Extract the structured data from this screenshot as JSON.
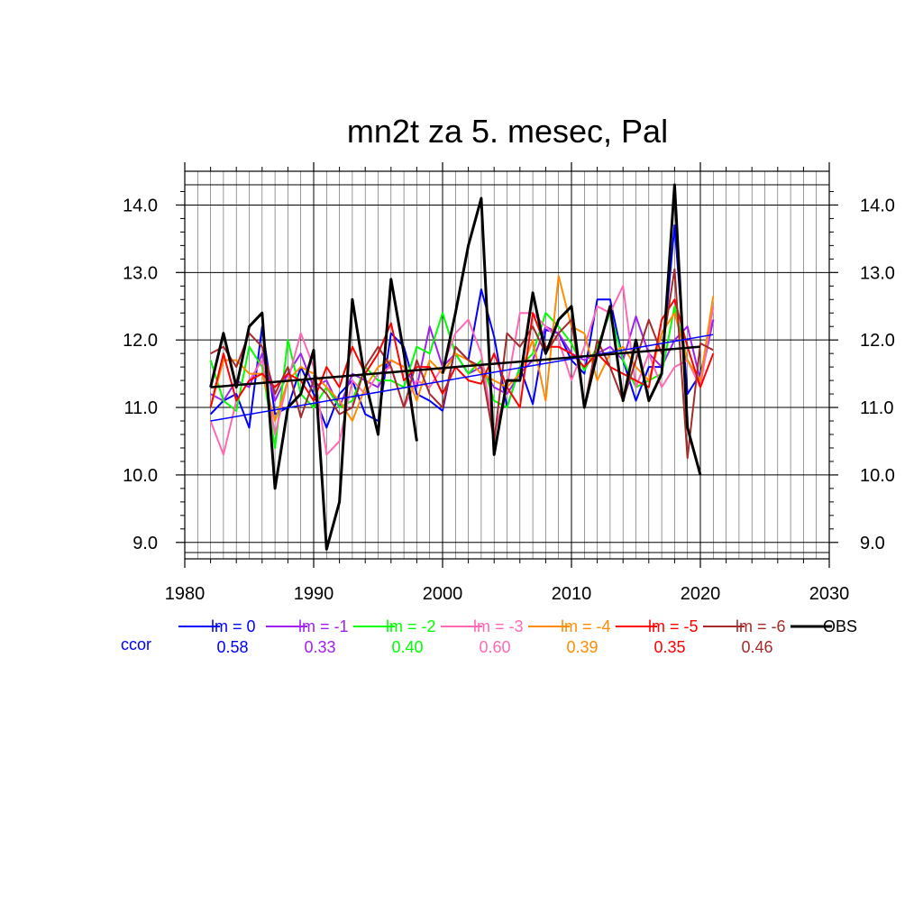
{
  "chart_data": {
    "type": "line",
    "title": "mn2t za 5. mesec, Pal",
    "xlabel": "",
    "ylabel": "",
    "xlim": [
      1980,
      2030
    ],
    "ylim": [
      8.85,
      14.3
    ],
    "x_ticks": [
      1980,
      1990,
      2000,
      2010,
      2020,
      2030
    ],
    "y_ticks": [
      9.0,
      10.0,
      11.0,
      12.0,
      13.0,
      14.0
    ],
    "y_tick_labels": [
      "9.0",
      "10.0",
      "11.0",
      "12.0",
      "13.0",
      "14.0"
    ],
    "x_tick_labels": [
      "1980",
      "1990",
      "2000",
      "2010",
      "2020",
      "2030"
    ],
    "grid": true,
    "legend_position": "bottom",
    "ccor_label": "ccor",
    "x": [
      1982,
      1983,
      1984,
      1985,
      1986,
      1987,
      1988,
      1989,
      1990,
      1991,
      1992,
      1993,
      1994,
      1995,
      1996,
      1997,
      1998,
      1999,
      2000,
      2001,
      2002,
      2003,
      2004,
      2005,
      2006,
      2007,
      2008,
      2009,
      2010,
      2011,
      2012,
      2013,
      2014,
      2015,
      2016,
      2017,
      2018,
      2019,
      2020,
      2021
    ],
    "series": [
      {
        "name": "lm = 0",
        "color": "#0000ff",
        "ccor": "0.58",
        "values": [
          10.9,
          11.1,
          11.2,
          10.7,
          12.2,
          10.9,
          11.0,
          11.6,
          11.2,
          10.7,
          11.2,
          11.4,
          10.9,
          10.8,
          12.1,
          11.9,
          11.2,
          11.1,
          10.95,
          11.9,
          11.7,
          12.75,
          12.05,
          11.0,
          11.6,
          11.05,
          12.15,
          12.1,
          11.7,
          11.5,
          12.6,
          12.6,
          11.7,
          11.1,
          11.6,
          11.6,
          13.7,
          11.2,
          11.5,
          12.3
        ],
        "trend": [
          10.8,
          12.08
        ]
      },
      {
        "name": "lm = -1",
        "color": "#a020f0",
        "ccor": "0.33",
        "values": [
          11.2,
          11.1,
          11.4,
          11.3,
          11.8,
          11.1,
          11.5,
          11.8,
          11.3,
          11.4,
          11.0,
          11.5,
          11.4,
          11.3,
          11.7,
          11.6,
          11.3,
          12.2,
          11.6,
          11.8,
          11.5,
          11.6,
          11.3,
          11.2,
          11.5,
          11.7,
          12.2,
          12.1,
          11.8,
          11.7,
          11.8,
          11.9,
          11.7,
          12.35,
          11.8,
          11.6,
          12.0,
          12.2,
          11.4,
          12.3
        ]
      },
      {
        "name": "lm = -2",
        "color": "#00ff00",
        "ccor": "0.40",
        "values": [
          11.7,
          11.1,
          10.95,
          11.9,
          11.6,
          10.4,
          12.0,
          11.2,
          11.0,
          11.3,
          11.0,
          11.1,
          11.6,
          11.4,
          11.4,
          11.3,
          11.9,
          11.8,
          12.4,
          11.8,
          11.5,
          11.7,
          11.1,
          11.0,
          11.6,
          11.8,
          12.4,
          12.2,
          11.95,
          11.55,
          11.9,
          12.4,
          11.7,
          11.3,
          11.4,
          11.5,
          12.5,
          11.7,
          11.4,
          12.5
        ]
      },
      {
        "name": "lm = -3",
        "color": "#ff69b4",
        "ccor": "0.60",
        "values": [
          10.8,
          10.3,
          11.1,
          11.4,
          11.7,
          10.6,
          11.4,
          12.1,
          11.6,
          10.3,
          10.5,
          11.4,
          11.2,
          11.5,
          11.6,
          11.0,
          11.4,
          11.3,
          11.6,
          12.1,
          12.3,
          11.8,
          10.6,
          11.3,
          12.4,
          12.4,
          12.2,
          12.0,
          11.4,
          11.9,
          12.5,
          12.4,
          12.8,
          11.3,
          11.8,
          11.3,
          11.6,
          11.7,
          11.3,
          12.5
        ]
      },
      {
        "name": "lm = -4",
        "color": "#ff8c00",
        "ccor": "0.39",
        "values": [
          11.0,
          11.7,
          11.7,
          11.5,
          11.5,
          10.8,
          11.4,
          11.6,
          11.5,
          11.3,
          11.1,
          10.8,
          11.3,
          11.6,
          11.7,
          11.6,
          11.1,
          11.7,
          11.5,
          11.8,
          11.7,
          11.5,
          11.4,
          11.3,
          11.5,
          12.0,
          11.1,
          12.95,
          12.2,
          12.1,
          11.4,
          11.8,
          11.9,
          11.6,
          11.4,
          12.1,
          12.4,
          11.7,
          11.4,
          12.65
        ]
      },
      {
        "name": "lm = -5",
        "color": "#ff0000",
        "ccor": "0.35",
        "values": [
          11.0,
          11.8,
          11.1,
          11.4,
          11.5,
          11.3,
          11.5,
          11.4,
          11.1,
          11.6,
          11.3,
          11.9,
          11.5,
          11.8,
          12.25,
          11.4,
          11.6,
          11.6,
          11.2,
          11.6,
          11.4,
          11.35,
          11.8,
          11.3,
          11.0,
          12.4,
          11.9,
          11.9,
          11.8,
          11.6,
          11.8,
          11.6,
          11.5,
          11.4,
          11.3,
          12.3,
          12.6,
          11.9,
          11.3,
          11.8
        ]
      },
      {
        "name": "lm = -6",
        "color": "#a52a2a",
        "ccor": "0.46",
        "values": [
          11.8,
          11.9,
          11.6,
          12.1,
          11.9,
          11.2,
          11.6,
          10.85,
          11.4,
          11.2,
          10.9,
          11.0,
          11.6,
          11.9,
          11.6,
          11.0,
          11.7,
          11.2,
          11.0,
          11.9,
          11.7,
          11.6,
          10.5,
          12.1,
          11.9,
          12.2,
          11.8,
          12.1,
          12.3,
          11.0,
          12.0,
          11.6,
          11.1,
          11.7,
          12.3,
          11.8,
          13.05,
          10.25,
          11.95,
          11.85
        ]
      },
      {
        "name": "OBS",
        "color": "#000000",
        "ccor": "",
        "values": [
          11.3,
          12.1,
          11.3,
          12.2,
          12.4,
          9.8,
          11.0,
          11.2,
          11.85,
          8.9,
          9.6,
          12.6,
          11.4,
          10.6,
          12.9,
          11.8,
          10.5,
          null,
          11.5,
          12.4,
          13.4,
          14.1,
          10.3,
          11.4,
          11.4,
          12.7,
          11.8,
          12.3,
          12.5,
          11.0,
          11.8,
          12.5,
          11.1,
          12.0,
          11.1,
          11.5,
          14.3,
          10.7,
          10.0,
          null
        ],
        "trend": [
          11.3,
          11.9
        ],
        "trend_end_year": 2020
      }
    ]
  }
}
